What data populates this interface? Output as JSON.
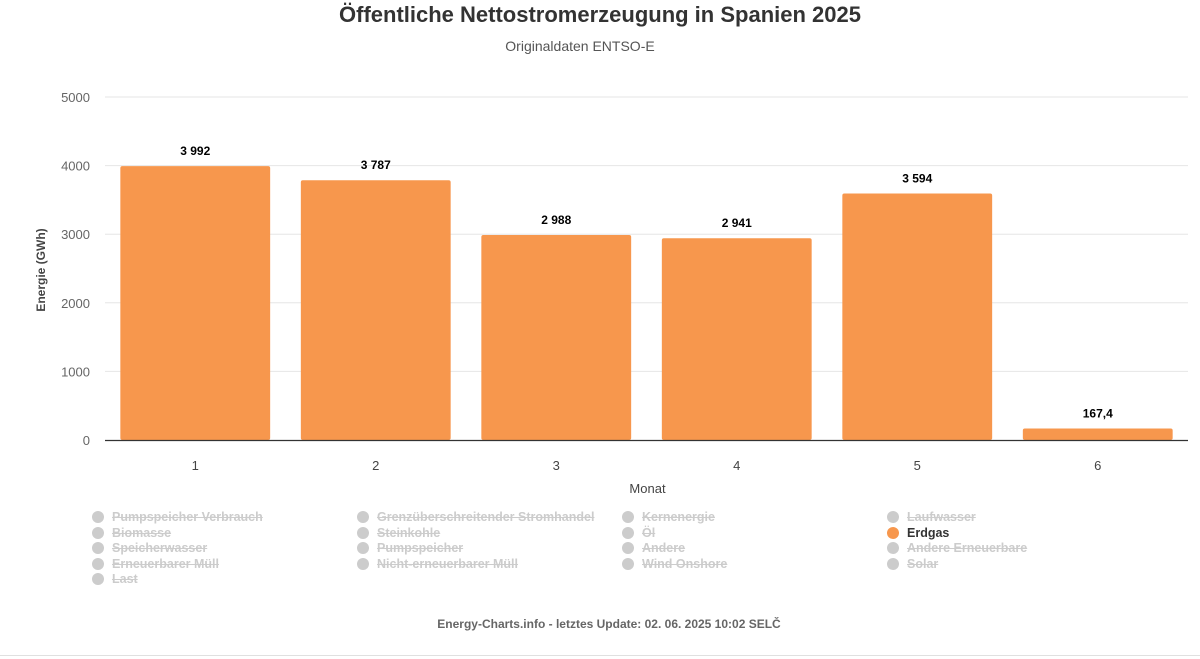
{
  "title": "Öffentliche Nettostromerzeugung in Spanien 2025",
  "subtitle": "Originaldaten ENTSO-E",
  "credits": "Energy-Charts.info - letztes Update: 02. 06. 2025 10:02 SELČ",
  "colors": {
    "bar": "#f7974d",
    "grid": "#e6e6e6",
    "axis": "#333333",
    "hidden_legend": "#cccccc"
  },
  "chart_data": {
    "type": "bar",
    "title": "Öffentliche Nettostromerzeugung in Spanien 2025",
    "subtitle": "Originaldaten ENTSO-E",
    "xlabel": "Monat",
    "ylabel": "Energie (GWh)",
    "categories": [
      "1",
      "2",
      "3",
      "4",
      "5",
      "6"
    ],
    "series": [
      {
        "name": "Erdgas",
        "values": [
          3992,
          3787,
          2988,
          2941,
          3594,
          167.4
        ],
        "labels": [
          "3 992",
          "3 787",
          "2 988",
          "2 941",
          "3 594",
          "167,4"
        ]
      }
    ],
    "ylim": [
      0,
      5000
    ],
    "yticks": [
      0,
      1000,
      2000,
      3000,
      4000,
      5000
    ],
    "grid": true,
    "legend_position": "bottom"
  },
  "legend": [
    {
      "label": "Pumpspeicher Verbrauch",
      "visible": false
    },
    {
      "label": "Grenzüberschreitender Stromhandel",
      "visible": false
    },
    {
      "label": "Kernenergie",
      "visible": false
    },
    {
      "label": "Laufwasser",
      "visible": false
    },
    {
      "label": "Biomasse",
      "visible": false
    },
    {
      "label": "Steinkohle",
      "visible": false
    },
    {
      "label": "Öl",
      "visible": false
    },
    {
      "label": "Erdgas",
      "visible": true,
      "color": "#f7974d"
    },
    {
      "label": "Speicherwasser",
      "visible": false
    },
    {
      "label": "Pumpspeicher",
      "visible": false
    },
    {
      "label": "Andere",
      "visible": false
    },
    {
      "label": "Andere Erneuerbare",
      "visible": false
    },
    {
      "label": "Erneuerbarer Müll",
      "visible": false
    },
    {
      "label": "Nicht-erneuerbarer Müll",
      "visible": false
    },
    {
      "label": "Wind Onshore",
      "visible": false
    },
    {
      "label": "Solar",
      "visible": false
    },
    {
      "label": "Last",
      "visible": false
    }
  ]
}
